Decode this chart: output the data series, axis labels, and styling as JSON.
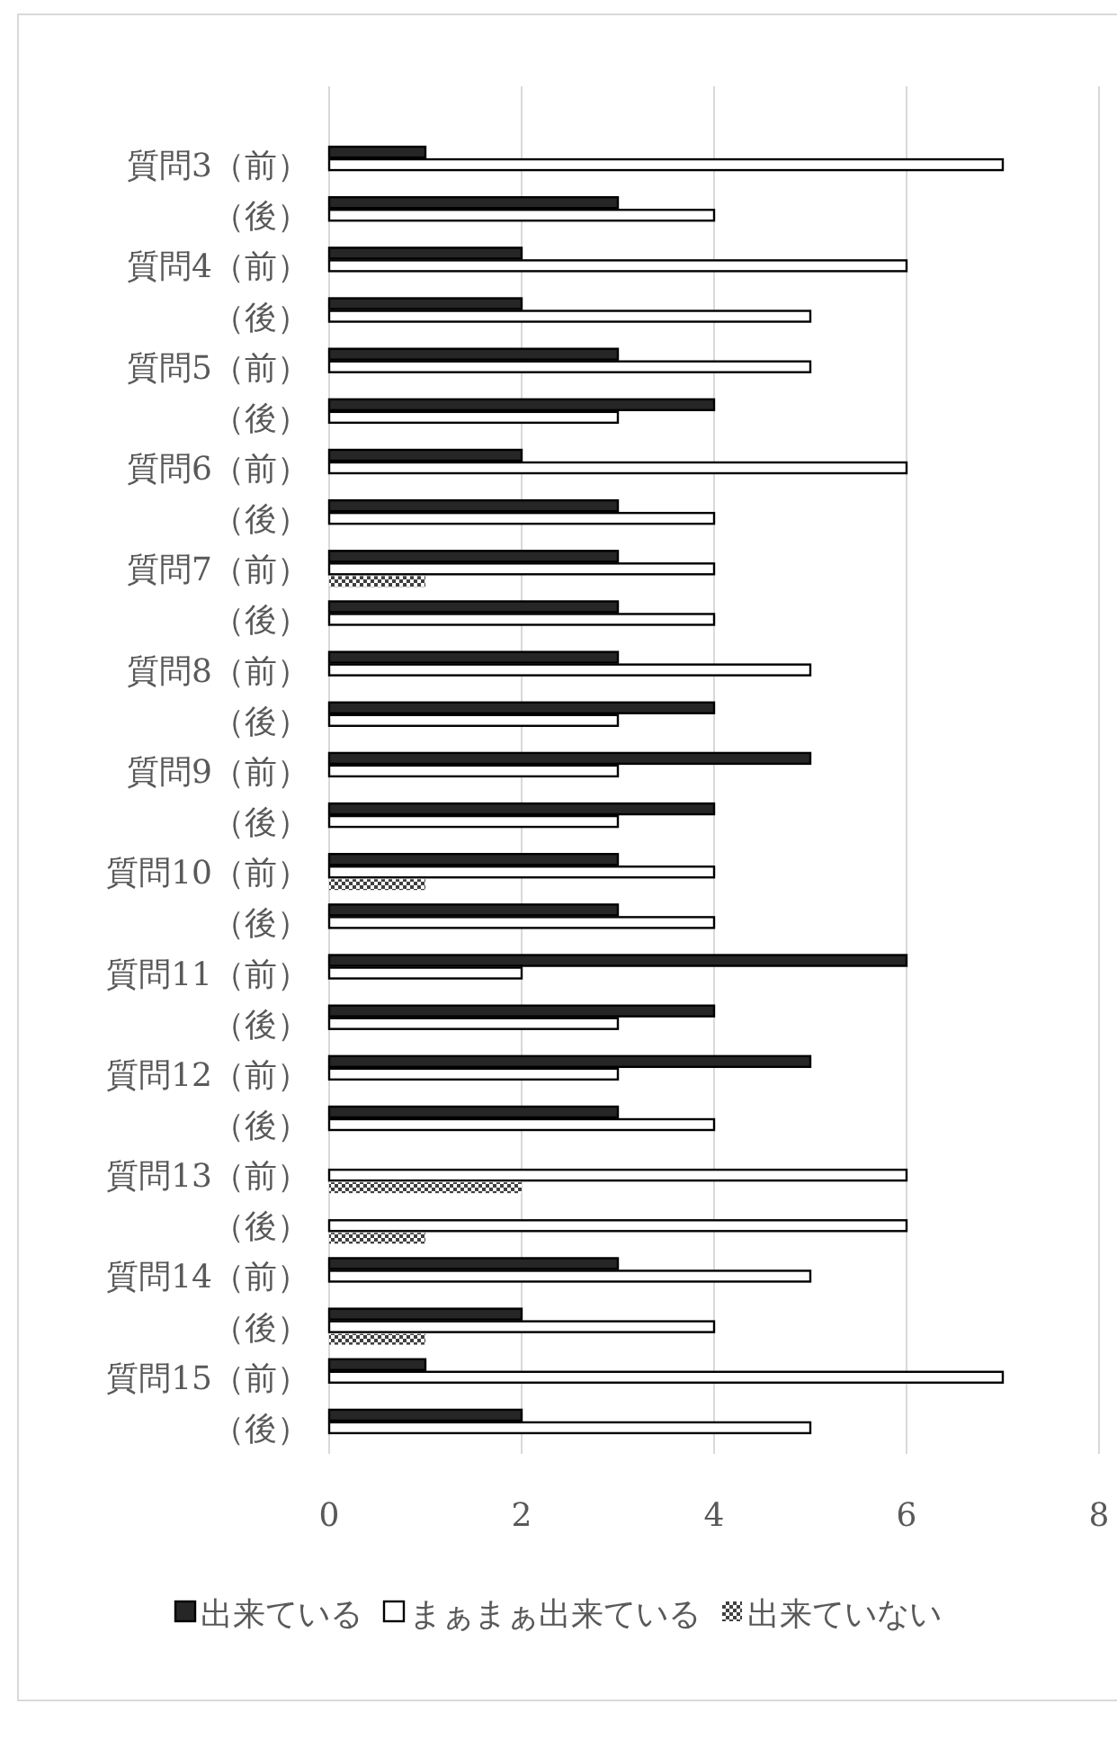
{
  "chart_data": {
    "type": "bar",
    "orientation": "horizontal",
    "categories": [
      "質問3（前）",
      "（後）",
      "質問4（前）",
      "（後）",
      "質問5（前）",
      "（後）",
      "質問6（前）",
      "（後）",
      "質問7（前）",
      "（後）",
      "質問8（前）",
      "（後）",
      "質問9（前）",
      "（後）",
      "質問10（前）",
      "（後）",
      "質問11（前）",
      "（後）",
      "質問12（前）",
      "（後）",
      "質問13（前）",
      "（後）",
      "質問14（前）",
      "（後）",
      "質問15（前）",
      "（後）"
    ],
    "series": [
      {
        "name": "出来ている",
        "color": "#262626",
        "values": [
          1,
          3,
          2,
          2,
          3,
          4,
          2,
          3,
          3,
          3,
          3,
          4,
          5,
          4,
          3,
          3,
          6,
          4,
          5,
          3,
          0,
          0,
          3,
          2,
          1,
          2
        ]
      },
      {
        "name": "まぁまぁ出来ている",
        "color": "#ffffff",
        "values": [
          7,
          4,
          6,
          5,
          5,
          3,
          6,
          4,
          4,
          4,
          5,
          3,
          3,
          3,
          4,
          4,
          2,
          3,
          3,
          4,
          6,
          6,
          5,
          4,
          7,
          5
        ]
      },
      {
        "name": "出来ていない",
        "color": "#404040",
        "values": [
          0,
          0,
          0,
          0,
          0,
          0,
          0,
          0,
          1,
          0,
          0,
          0,
          0,
          0,
          1,
          0,
          0,
          0,
          0,
          0,
          2,
          1,
          0,
          1,
          0,
          0
        ]
      }
    ],
    "xlim": [
      0,
      8
    ],
    "xticks": [
      0,
      2,
      4,
      6,
      8
    ],
    "grid": "x",
    "legend": "bottom"
  }
}
